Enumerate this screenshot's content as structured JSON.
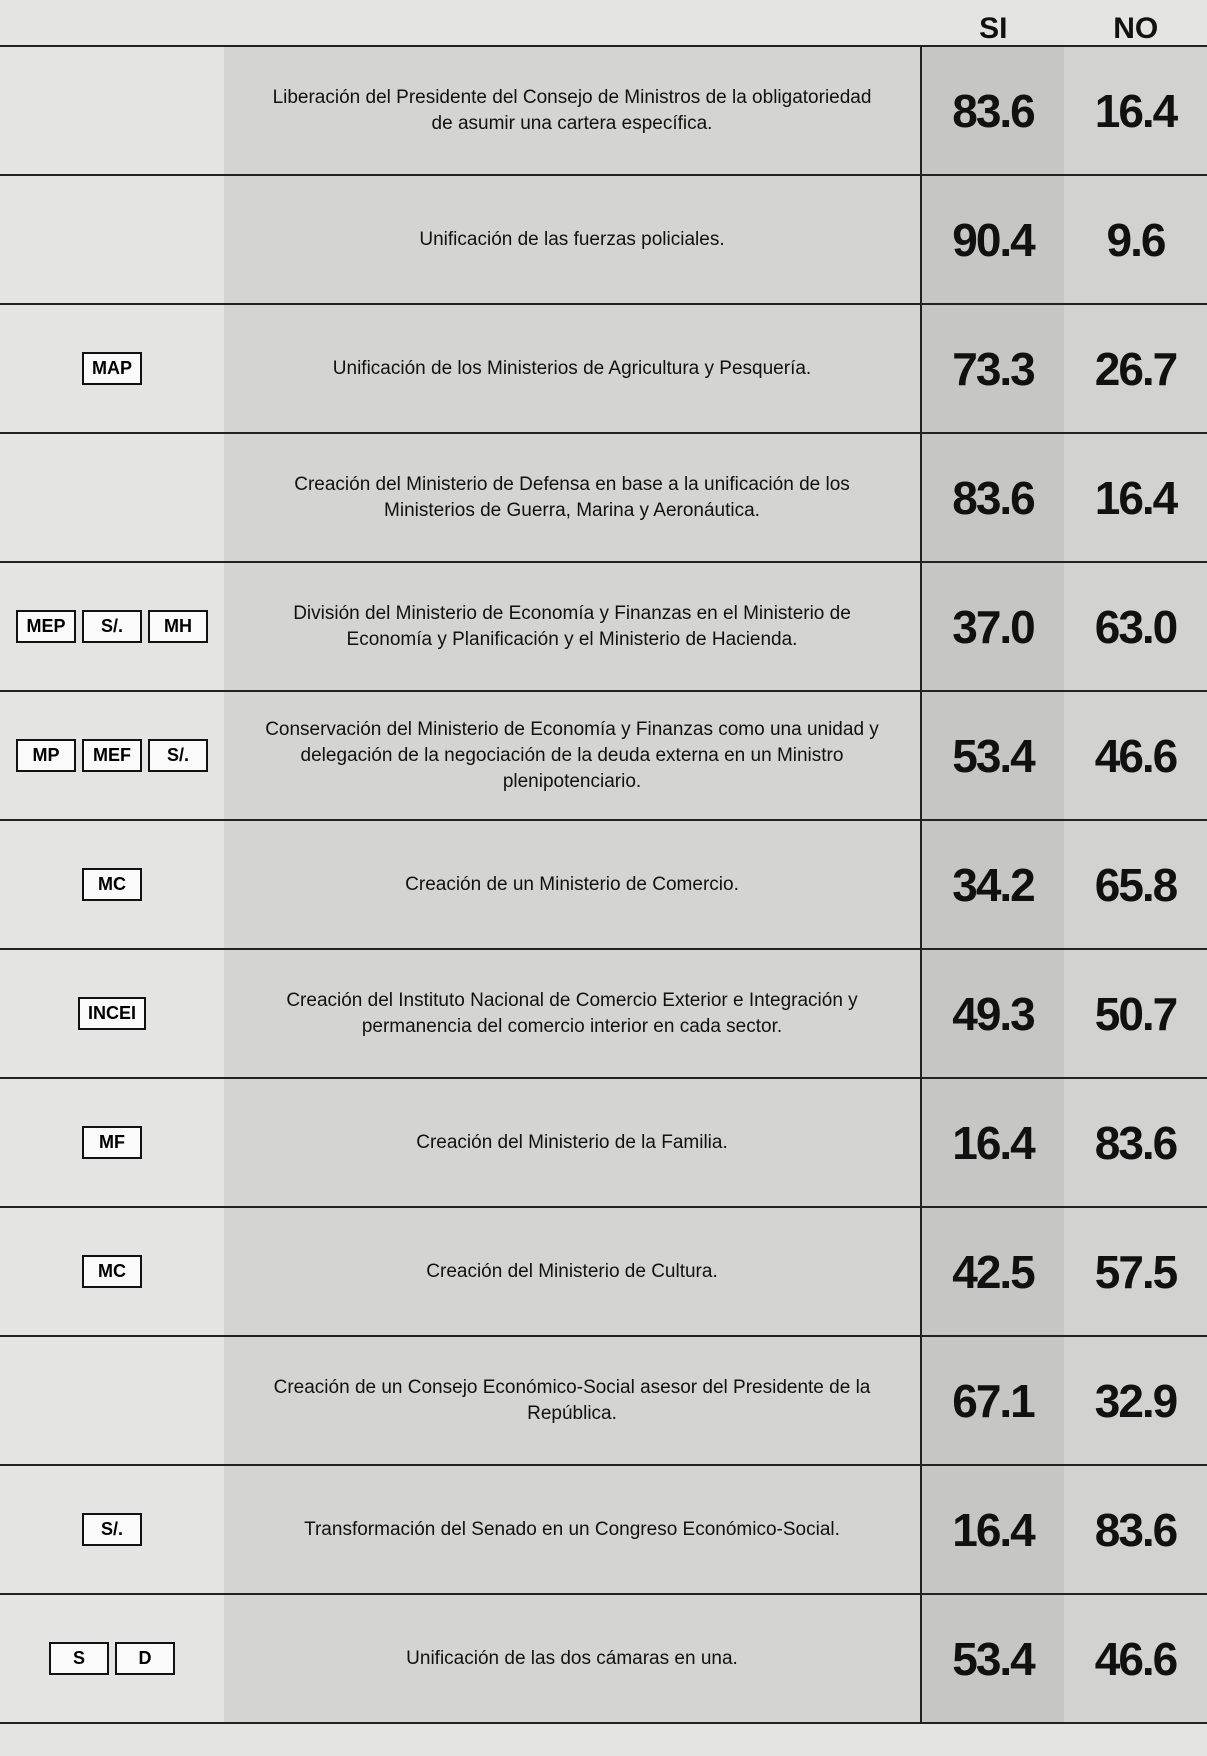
{
  "header": {
    "si": "SI",
    "no": "NO"
  },
  "rows": [
    {
      "text": "Liberación del Presidente del Consejo de Ministros de la obligatoriedad de asumir una cartera específica.",
      "si": "83.6",
      "no": "16.4",
      "icon_labels": []
    },
    {
      "text": "Unificación de las fuerzas policiales.",
      "si": "90.4",
      "no": "9.6",
      "icon_labels": []
    },
    {
      "text": "Unificación de los Ministerios de Agricultura y Pesquería.",
      "si": "73.3",
      "no": "26.7",
      "icon_labels": [
        "MAP"
      ]
    },
    {
      "text": "Creación del Ministerio de Defensa en base a la unificación de los Ministerios de Guerra, Marina y Aeronáutica.",
      "si": "83.6",
      "no": "16.4",
      "icon_labels": []
    },
    {
      "text": "División del Ministerio de Economía y Finanzas en el Ministerio de Economía y Planificación y el Ministerio de Hacienda.",
      "si": "37.0",
      "no": "63.0",
      "icon_labels": [
        "MEP",
        "S/.",
        "MH"
      ]
    },
    {
      "text": "Conservación del Ministerio de Economía y Finanzas como una unidad y delegación de la negociación de la deuda externa en un Ministro plenipotenciario.",
      "si": "53.4",
      "no": "46.6",
      "icon_labels": [
        "MP",
        "MEF",
        "S/."
      ]
    },
    {
      "text": "Creación de un Ministerio de Comercio.",
      "si": "34.2",
      "no": "65.8",
      "icon_labels": [
        "MC"
      ]
    },
    {
      "text": "Creación del Instituto Nacional de Comercio Exterior e Integración y permanencia del comercio interior en cada sector.",
      "si": "49.3",
      "no": "50.7",
      "icon_labels": [
        "INCEI"
      ]
    },
    {
      "text": "Creación del Ministerio de la Familia.",
      "si": "16.4",
      "no": "83.6",
      "icon_labels": [
        "MF"
      ]
    },
    {
      "text": "Creación del Ministerio de Cultura.",
      "si": "42.5",
      "no": "57.5",
      "icon_labels": [
        "MC"
      ]
    },
    {
      "text": "Creación de un Consejo Económico-Social asesor del Presidente de la República.",
      "si": "67.1",
      "no": "32.9",
      "icon_labels": []
    },
    {
      "text": "Transformación del Senado en un Congreso Económico-Social.",
      "si": "16.4",
      "no": "83.6",
      "icon_labels": [
        "S/."
      ]
    },
    {
      "text": "Unificación de las dos cámaras en una.",
      "si": "53.4",
      "no": "46.6",
      "icon_labels": [
        "S",
        "D"
      ]
    }
  ]
}
